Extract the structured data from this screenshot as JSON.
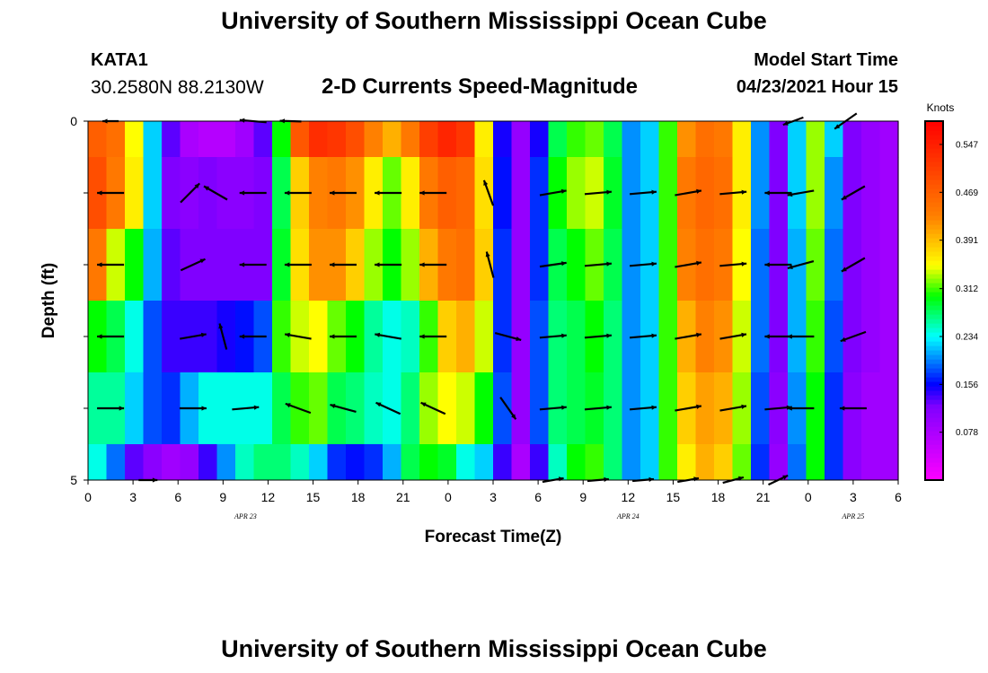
{
  "header": {
    "title": "University of Southern Mississippi Ocean Cube",
    "station_id": "KATA1",
    "coordinates": "30.2580N  88.2130W",
    "plot_title": "2-D Currents Speed-Magnitude",
    "model_start_label": "Model Start Time",
    "model_start_value": "04/23/2021 Hour 15"
  },
  "footer": {
    "title": "University of Southern Mississippi Ocean Cube"
  },
  "chart_data": {
    "type": "heatmap",
    "title": "2-D Currents Speed-Magnitude",
    "xlabel": "Forecast Time(Z)",
    "ylabel": "Depth (ft)",
    "x_hours_from_start": [
      0,
      54
    ],
    "x_tick_labels": [
      "0",
      "3",
      "6",
      "9",
      "12",
      "15",
      "18",
      "21",
      "0",
      "3",
      "6",
      "9",
      "12",
      "15",
      "18",
      "21",
      "0",
      "3",
      "6"
    ],
    "date_labels": [
      {
        "label": "APR  23",
        "at_hour": 10.5
      },
      {
        "label": "APR  24",
        "at_hour": 36
      },
      {
        "label": "APR  25",
        "at_hour": 51
      }
    ],
    "depth_range_ft": [
      0,
      5
    ],
    "y_tick_labels": [
      "0",
      "5"
    ],
    "depth_bands_ft": [
      [
        0,
        0.5
      ],
      [
        0.5,
        1.5
      ],
      [
        1.5,
        2.5
      ],
      [
        2.5,
        3.5
      ],
      [
        3.5,
        4.5
      ],
      [
        4.5,
        5
      ]
    ],
    "colorbar": {
      "units": "Knots",
      "range": [
        0,
        0.585
      ],
      "tick_values": [
        0.547,
        0.469,
        0.391,
        0.312,
        0.234,
        0.156,
        0.078
      ],
      "tick_labels": [
        "0.547",
        "0.469",
        "0.391",
        "0.312",
        "0.234",
        "0.156",
        "0.078"
      ]
    },
    "speed_columns_knots": [
      [
        0.47,
        0.49,
        0.44,
        0.3,
        0.26,
        0.24
      ],
      [
        0.45,
        0.44,
        0.34,
        0.28,
        0.26,
        0.19
      ],
      [
        0.35,
        0.36,
        0.3,
        0.24,
        0.22,
        0.13
      ],
      [
        0.22,
        0.22,
        0.21,
        0.18,
        0.18,
        0.11
      ],
      [
        0.13,
        0.12,
        0.13,
        0.14,
        0.17,
        0.09
      ],
      [
        0.08,
        0.11,
        0.12,
        0.14,
        0.21,
        0.1
      ],
      [
        0.07,
        0.12,
        0.12,
        0.14,
        0.24,
        0.14
      ],
      [
        0.07,
        0.11,
        0.12,
        0.15,
        0.24,
        0.2
      ],
      [
        0.09,
        0.11,
        0.12,
        0.16,
        0.24,
        0.25
      ],
      [
        0.13,
        0.12,
        0.12,
        0.18,
        0.24,
        0.27
      ],
      [
        0.3,
        0.28,
        0.29,
        0.31,
        0.28,
        0.27
      ],
      [
        0.48,
        0.38,
        0.37,
        0.34,
        0.31,
        0.25
      ],
      [
        0.53,
        0.43,
        0.42,
        0.35,
        0.32,
        0.22
      ],
      [
        0.52,
        0.44,
        0.42,
        0.32,
        0.28,
        0.17
      ],
      [
        0.49,
        0.42,
        0.38,
        0.3,
        0.27,
        0.16
      ],
      [
        0.43,
        0.36,
        0.33,
        0.26,
        0.25,
        0.17
      ],
      [
        0.4,
        0.32,
        0.3,
        0.24,
        0.24,
        0.21
      ],
      [
        0.44,
        0.36,
        0.33,
        0.25,
        0.27,
        0.28
      ],
      [
        0.51,
        0.44,
        0.4,
        0.31,
        0.33,
        0.3
      ],
      [
        0.54,
        0.47,
        0.44,
        0.38,
        0.35,
        0.29
      ],
      [
        0.52,
        0.46,
        0.45,
        0.4,
        0.34,
        0.24
      ],
      [
        0.36,
        0.37,
        0.38,
        0.34,
        0.3,
        0.22
      ],
      [
        0.15,
        0.16,
        0.17,
        0.17,
        0.18,
        0.14
      ],
      [
        0.1,
        0.1,
        0.1,
        0.1,
        0.1,
        0.08
      ],
      [
        0.15,
        0.17,
        0.17,
        0.18,
        0.18,
        0.14
      ],
      [
        0.28,
        0.3,
        0.28,
        0.27,
        0.27,
        0.25
      ],
      [
        0.31,
        0.33,
        0.3,
        0.28,
        0.28,
        0.3
      ],
      [
        0.32,
        0.34,
        0.32,
        0.3,
        0.29,
        0.31
      ],
      [
        0.28,
        0.29,
        0.28,
        0.27,
        0.27,
        0.27
      ],
      [
        0.2,
        0.2,
        0.2,
        0.2,
        0.2,
        0.2
      ],
      [
        0.22,
        0.22,
        0.22,
        0.22,
        0.22,
        0.22
      ],
      [
        0.31,
        0.31,
        0.31,
        0.31,
        0.31,
        0.31
      ],
      [
        0.42,
        0.44,
        0.43,
        0.4,
        0.38,
        0.36
      ],
      [
        0.45,
        0.46,
        0.45,
        0.43,
        0.41,
        0.4
      ],
      [
        0.44,
        0.45,
        0.44,
        0.42,
        0.4,
        0.38
      ],
      [
        0.36,
        0.36,
        0.35,
        0.34,
        0.33,
        0.32
      ],
      [
        0.2,
        0.2,
        0.19,
        0.19,
        0.18,
        0.17
      ],
      [
        0.12,
        0.12,
        0.12,
        0.12,
        0.11,
        0.1
      ],
      [
        0.22,
        0.22,
        0.21,
        0.21,
        0.2,
        0.19
      ],
      [
        0.33,
        0.33,
        0.32,
        0.31,
        0.3,
        0.3
      ],
      [
        0.22,
        0.2,
        0.19,
        0.18,
        0.17,
        0.17
      ],
      [
        0.12,
        0.12,
        0.12,
        0.12,
        0.11,
        0.11
      ],
      [
        0.1,
        0.1,
        0.1,
        0.1,
        0.09,
        0.09
      ],
      [
        0.09,
        0.09,
        0.09,
        0.09,
        0.09,
        0.09
      ]
    ],
    "vectors": [
      {
        "hour": 1.5,
        "depth": 0.0,
        "angle": 180,
        "len": 0.6
      },
      {
        "hour": 11,
        "depth": 0.0,
        "angle": 175,
        "len": 1.0
      },
      {
        "hour": 13.5,
        "depth": 0.0,
        "angle": 178,
        "len": 0.8
      },
      {
        "hour": 47,
        "depth": 0.0,
        "angle": 200,
        "len": 0.8
      },
      {
        "hour": 50.5,
        "depth": 0.0,
        "angle": 215,
        "len": 1.0
      },
      {
        "hour": 1.5,
        "depth": 1.0,
        "angle": 180,
        "len": 1.0
      },
      {
        "hour": 6.8,
        "depth": 1.0,
        "angle": 45,
        "len": 1.0
      },
      {
        "hour": 8.5,
        "depth": 1.0,
        "angle": 150,
        "len": 1.0
      },
      {
        "hour": 11,
        "depth": 1.0,
        "angle": 180,
        "len": 1.0
      },
      {
        "hour": 14,
        "depth": 1.0,
        "angle": 180,
        "len": 1.0
      },
      {
        "hour": 17,
        "depth": 1.0,
        "angle": 180,
        "len": 1.0
      },
      {
        "hour": 20,
        "depth": 1.0,
        "angle": 180,
        "len": 1.0
      },
      {
        "hour": 23,
        "depth": 1.0,
        "angle": 180,
        "len": 1.0
      },
      {
        "hour": 26.7,
        "depth": 1.0,
        "angle": 110,
        "len": 1.0
      },
      {
        "hour": 31,
        "depth": 1.0,
        "angle": 10,
        "len": 1.0
      },
      {
        "hour": 34,
        "depth": 1.0,
        "angle": 5,
        "len": 1.0
      },
      {
        "hour": 37,
        "depth": 1.0,
        "angle": 5,
        "len": 1.0
      },
      {
        "hour": 40,
        "depth": 1.0,
        "angle": 10,
        "len": 1.0
      },
      {
        "hour": 43,
        "depth": 1.0,
        "angle": 5,
        "len": 1.0
      },
      {
        "hour": 46,
        "depth": 1.0,
        "angle": 180,
        "len": 1.0
      },
      {
        "hour": 47.5,
        "depth": 1.0,
        "angle": 190,
        "len": 1.0
      },
      {
        "hour": 51,
        "depth": 1.0,
        "angle": 210,
        "len": 1.0
      },
      {
        "hour": 1.5,
        "depth": 2.0,
        "angle": 180,
        "len": 1.0
      },
      {
        "hour": 7,
        "depth": 2.0,
        "angle": 25,
        "len": 1.0
      },
      {
        "hour": 11,
        "depth": 2.0,
        "angle": 180,
        "len": 1.0
      },
      {
        "hour": 14,
        "depth": 2.0,
        "angle": 180,
        "len": 1.0
      },
      {
        "hour": 17,
        "depth": 2.0,
        "angle": 180,
        "len": 1.0
      },
      {
        "hour": 20,
        "depth": 2.0,
        "angle": 180,
        "len": 1.0
      },
      {
        "hour": 23,
        "depth": 2.0,
        "angle": 180,
        "len": 1.0
      },
      {
        "hour": 26.8,
        "depth": 2.0,
        "angle": 105,
        "len": 1.0
      },
      {
        "hour": 31,
        "depth": 2.0,
        "angle": 8,
        "len": 1.0
      },
      {
        "hour": 34,
        "depth": 2.0,
        "angle": 5,
        "len": 1.0
      },
      {
        "hour": 37,
        "depth": 2.0,
        "angle": 5,
        "len": 1.0
      },
      {
        "hour": 40,
        "depth": 2.0,
        "angle": 10,
        "len": 1.0
      },
      {
        "hour": 43,
        "depth": 2.0,
        "angle": 5,
        "len": 1.0
      },
      {
        "hour": 46,
        "depth": 2.0,
        "angle": 180,
        "len": 1.0
      },
      {
        "hour": 47.5,
        "depth": 2.0,
        "angle": 195,
        "len": 1.0
      },
      {
        "hour": 51,
        "depth": 2.0,
        "angle": 210,
        "len": 1.0
      },
      {
        "hour": 1.5,
        "depth": 3.0,
        "angle": 180,
        "len": 1.0
      },
      {
        "hour": 7,
        "depth": 3.0,
        "angle": 10,
        "len": 1.0
      },
      {
        "hour": 9,
        "depth": 3.0,
        "angle": 105,
        "len": 1.0
      },
      {
        "hour": 11,
        "depth": 3.0,
        "angle": 180,
        "len": 1.0
      },
      {
        "hour": 14,
        "depth": 3.0,
        "angle": 170,
        "len": 1.0
      },
      {
        "hour": 17,
        "depth": 3.0,
        "angle": 180,
        "len": 1.0
      },
      {
        "hour": 20,
        "depth": 3.0,
        "angle": 170,
        "len": 1.0
      },
      {
        "hour": 23,
        "depth": 3.0,
        "angle": 180,
        "len": 1.0
      },
      {
        "hour": 28,
        "depth": 3.0,
        "angle": -15,
        "len": 1.0
      },
      {
        "hour": 31,
        "depth": 3.0,
        "angle": 5,
        "len": 1.0
      },
      {
        "hour": 34,
        "depth": 3.0,
        "angle": 5,
        "len": 1.0
      },
      {
        "hour": 37,
        "depth": 3.0,
        "angle": 5,
        "len": 1.0
      },
      {
        "hour": 40,
        "depth": 3.0,
        "angle": 10,
        "len": 1.0
      },
      {
        "hour": 43,
        "depth": 3.0,
        "angle": 10,
        "len": 1.0
      },
      {
        "hour": 46,
        "depth": 3.0,
        "angle": 180,
        "len": 1.0
      },
      {
        "hour": 47.5,
        "depth": 3.0,
        "angle": 180,
        "len": 1.0
      },
      {
        "hour": 51,
        "depth": 3.0,
        "angle": 200,
        "len": 1.0
      },
      {
        "hour": 1.5,
        "depth": 4.0,
        "angle": 0,
        "len": 1.0
      },
      {
        "hour": 7,
        "depth": 4.0,
        "angle": 0,
        "len": 1.0
      },
      {
        "hour": 10.5,
        "depth": 4.0,
        "angle": 5,
        "len": 1.0
      },
      {
        "hour": 14,
        "depth": 4.0,
        "angle": 160,
        "len": 1.0
      },
      {
        "hour": 17,
        "depth": 4.0,
        "angle": 165,
        "len": 1.0
      },
      {
        "hour": 20,
        "depth": 4.0,
        "angle": 155,
        "len": 1.0
      },
      {
        "hour": 23,
        "depth": 4.0,
        "angle": 155,
        "len": 1.0
      },
      {
        "hour": 28,
        "depth": 4.0,
        "angle": -55,
        "len": 1.0
      },
      {
        "hour": 31,
        "depth": 4.0,
        "angle": 5,
        "len": 1.0
      },
      {
        "hour": 34,
        "depth": 4.0,
        "angle": 5,
        "len": 1.0
      },
      {
        "hour": 37,
        "depth": 4.0,
        "angle": 5,
        "len": 1.0
      },
      {
        "hour": 40,
        "depth": 4.0,
        "angle": 10,
        "len": 1.0
      },
      {
        "hour": 43,
        "depth": 4.0,
        "angle": 10,
        "len": 1.0
      },
      {
        "hour": 46,
        "depth": 4.0,
        "angle": 5,
        "len": 1.0
      },
      {
        "hour": 47.5,
        "depth": 4.0,
        "angle": 180,
        "len": 1.0
      },
      {
        "hour": 51,
        "depth": 4.0,
        "angle": 180,
        "len": 1.0
      },
      {
        "hour": 4,
        "depth": 5.0,
        "angle": 0,
        "len": 0.7
      },
      {
        "hour": 31,
        "depth": 5.0,
        "angle": 10,
        "len": 0.8
      },
      {
        "hour": 34,
        "depth": 5.0,
        "angle": 5,
        "len": 0.8
      },
      {
        "hour": 37,
        "depth": 5.0,
        "angle": 5,
        "len": 0.8
      },
      {
        "hour": 40,
        "depth": 5.0,
        "angle": 10,
        "len": 0.8
      },
      {
        "hour": 43,
        "depth": 5.0,
        "angle": 15,
        "len": 0.8
      },
      {
        "hour": 46,
        "depth": 5.0,
        "angle": 25,
        "len": 0.8
      }
    ]
  }
}
